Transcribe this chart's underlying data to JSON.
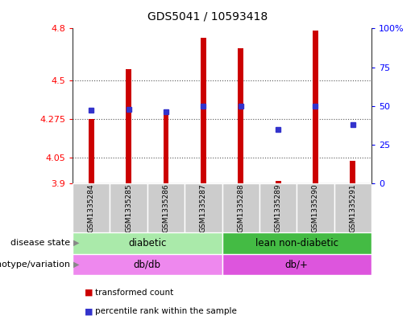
{
  "title": "GDS5041 / 10593418",
  "samples": [
    "GSM1335284",
    "GSM1335285",
    "GSM1335286",
    "GSM1335287",
    "GSM1335288",
    "GSM1335289",
    "GSM1335290",
    "GSM1335291"
  ],
  "transformed_count": [
    4.275,
    4.565,
    4.325,
    4.745,
    4.685,
    3.915,
    4.79,
    4.03
  ],
  "percentile_rank": [
    47,
    48,
    46,
    50,
    50,
    35,
    50,
    38
  ],
  "base_value": 3.9,
  "ylim": [
    3.9,
    4.8
  ],
  "yticks": [
    3.9,
    4.05,
    4.275,
    4.5,
    4.8
  ],
  "ytick_labels": [
    "3.9",
    "4.05",
    "4.275",
    "4.5",
    "4.8"
  ],
  "y2lim": [
    0,
    100
  ],
  "y2ticks": [
    0,
    25,
    50,
    75,
    100
  ],
  "y2tick_labels": [
    "0",
    "25",
    "50",
    "75",
    "100%"
  ],
  "bar_color": "#cc0000",
  "dot_color": "#3333cc",
  "bar_width": 0.15,
  "disease_state_groups": [
    {
      "label": "diabetic",
      "start": 0,
      "end": 4,
      "color": "#aaeaaa"
    },
    {
      "label": "lean non-diabetic",
      "start": 4,
      "end": 8,
      "color": "#44bb44"
    }
  ],
  "genotype_groups": [
    {
      "label": "db/db",
      "start": 0,
      "end": 4,
      "color": "#ee88ee"
    },
    {
      "label": "db/+",
      "start": 4,
      "end": 8,
      "color": "#dd55dd"
    }
  ],
  "disease_state_label": "disease state",
  "genotype_label": "genotype/variation",
  "legend_items": [
    {
      "label": "transformed count",
      "color": "#cc0000"
    },
    {
      "label": "percentile rank within the sample",
      "color": "#3333cc"
    }
  ],
  "dot_size": 5,
  "bg_color": "#ffffff",
  "sample_box_color": "#cccccc",
  "border_color": "#888888"
}
